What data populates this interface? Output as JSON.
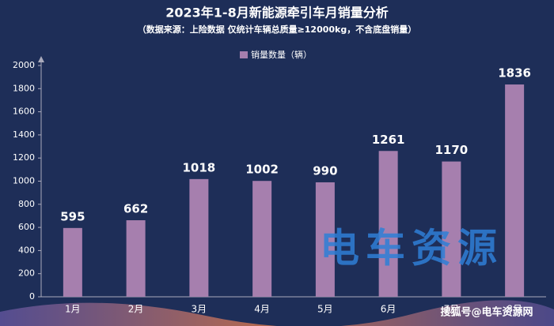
{
  "chart_data": {
    "type": "bar",
    "title": "2023年1-8月新能源牵引车月销量分析",
    "subtitle": "（数据来源：上险数据 仅统计车辆总质量≥12000kg，不含底盘销量）",
    "categories": [
      "1月",
      "2月",
      "3月",
      "4月",
      "5月",
      "6月",
      "7月",
      "8月"
    ],
    "series": [
      {
        "name": "销量数量（辆）",
        "color": "#a67fae",
        "values": [
          595,
          662,
          1018,
          1002,
          990,
          1261,
          1170,
          1836
        ]
      }
    ],
    "ylim": [
      0,
      2000
    ],
    "yticks": [
      0,
      200,
      400,
      600,
      800,
      1000,
      1200,
      1400,
      1600,
      1800,
      2000
    ],
    "grid": false,
    "legend": "top",
    "watermark": "电车资源",
    "credit": "搜狐号@电车资源网"
  }
}
